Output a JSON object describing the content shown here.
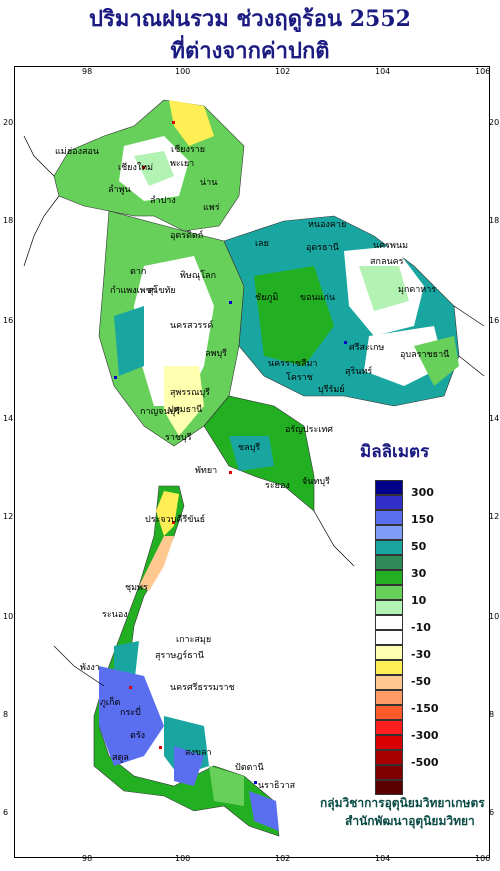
{
  "title_line1": "ปริมาณฝนรวม ช่วงฤดูร้อน 2552",
  "title_line2": "ที่ต่างจากค่าปกติ",
  "legend": {
    "unit": "มิลลิเมตร",
    "levels": [
      "300",
      "150",
      "50",
      "30",
      "10",
      "-10",
      "-30",
      "-50",
      "-150",
      "-300",
      "-500"
    ],
    "colors": [
      "#00008b",
      "#3030c8",
      "#5a6ef0",
      "#7e9cf8",
      "#1aa6a0",
      "#2e8b57",
      "#22b022",
      "#66d05a",
      "#b2f2b2",
      "#ffffff",
      "#ffffff",
      "#ffffb0",
      "#ffee55",
      "#ffc890",
      "#ff9966",
      "#ff5a2a",
      "#ff1e1e",
      "#d80000",
      "#a80000",
      "#800000",
      "#5a0000"
    ]
  },
  "credit_line1": "กลุ่มวิชาการอุตุนิยมวิทยาเกษตร",
  "credit_line2": "สำนักพัฒนาอุตุนิยมวิทยา",
  "axis_x_ticks": [
    "98",
    "100",
    "102",
    "104",
    "106"
  ],
  "axis_y_ticks": [
    "20",
    "18",
    "16",
    "14",
    "12",
    "10",
    "8",
    "6"
  ],
  "places": [
    {
      "name": "เชียงราย"
    },
    {
      "name": "แม่ฮ่องสอน"
    },
    {
      "name": "เชียงใหม่"
    },
    {
      "name": "ลำพูน"
    },
    {
      "name": "ลำปาง"
    },
    {
      "name": "พะเยา"
    },
    {
      "name": "น่าน"
    },
    {
      "name": "แพร่"
    },
    {
      "name": "อุตรดิตถ์"
    },
    {
      "name": "ตาก"
    },
    {
      "name": "สุโขทัย"
    },
    {
      "name": "พิษณุโลก"
    },
    {
      "name": "กำแพงเพชร"
    },
    {
      "name": "นครสวรรค์"
    },
    {
      "name": "เลย"
    },
    {
      "name": "หนองคาย"
    },
    {
      "name": "อุดรธานี"
    },
    {
      "name": "นครพนม"
    },
    {
      "name": "สกลนคร"
    },
    {
      "name": "มุกดาหาร"
    },
    {
      "name": "ขอนแก่น"
    },
    {
      "name": "ชัยภูมิ"
    },
    {
      "name": "อุบลราชธานี"
    },
    {
      "name": "สุรินทร์"
    },
    {
      "name": "นครราชสีมา"
    },
    {
      "name": "โคราช"
    },
    {
      "name": "บุรีรัมย์"
    },
    {
      "name": "ลพบุรี"
    },
    {
      "name": "สุพรรณบุรี"
    },
    {
      "name": "กาญจนบุรี"
    },
    {
      "name": "ปทุมธานี"
    },
    {
      "name": "ราชบุรี"
    },
    {
      "name": "ชลบุรี"
    },
    {
      "name": "จันทบุรี"
    },
    {
      "name": "ระยอง"
    },
    {
      "name": "พัทยา"
    },
    {
      "name": "ประจวบคีรีขันธ์"
    },
    {
      "name": "ชุมพร"
    },
    {
      "name": "ระนอง"
    },
    {
      "name": "สุราษฎร์ธานี"
    },
    {
      "name": "เกาะสมุย"
    },
    {
      "name": "พังงา"
    },
    {
      "name": "ภูเก็ต"
    },
    {
      "name": "กระบี่"
    },
    {
      "name": "นครศรีธรรมราช"
    },
    {
      "name": "ตรัง"
    },
    {
      "name": "สตูล"
    },
    {
      "name": "สงขลา"
    },
    {
      "name": "ปัตตานี"
    },
    {
      "name": "นราธิวาส"
    },
    {
      "name": "อรัญประเทศ"
    },
    {
      "name": "ศรีสะเกษ"
    }
  ]
}
